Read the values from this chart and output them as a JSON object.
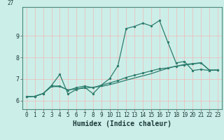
{
  "xlabel": "Humidex (Indice chaleur)",
  "line_color": "#2d7d6e",
  "bg_color": "#cceee8",
  "grid_color": "#f0b8b8",
  "xlim": [
    -0.5,
    23.5
  ],
  "ylim": [
    5.6,
    10.35
  ],
  "yticks": [
    6,
    7,
    8,
    9
  ],
  "xticks": [
    0,
    1,
    2,
    3,
    4,
    5,
    6,
    7,
    8,
    9,
    10,
    11,
    12,
    13,
    14,
    15,
    16,
    17,
    18,
    19,
    20,
    21,
    22,
    23
  ],
  "line1_x": [
    0,
    1,
    2,
    3,
    4,
    5,
    6,
    7,
    8,
    9,
    10,
    11,
    12,
    13,
    14,
    15,
    16,
    17,
    18,
    19,
    20,
    21,
    22,
    23
  ],
  "line1_y": [
    6.18,
    6.2,
    6.33,
    6.7,
    7.22,
    6.3,
    6.52,
    6.62,
    6.32,
    6.72,
    7.02,
    7.62,
    9.35,
    9.45,
    9.6,
    9.47,
    9.72,
    8.72,
    7.75,
    7.82,
    7.4,
    7.45,
    7.4,
    7.42
  ],
  "line2_x": [
    0,
    1,
    2,
    3,
    4,
    5,
    6,
    7,
    8,
    9,
    10,
    11,
    12,
    13,
    14,
    15,
    16,
    17,
    18,
    19,
    20,
    21,
    22,
    23
  ],
  "line2_y": [
    6.18,
    6.2,
    6.33,
    6.68,
    6.68,
    6.48,
    6.6,
    6.68,
    6.6,
    6.72,
    6.82,
    6.93,
    7.08,
    7.18,
    7.28,
    7.38,
    7.48,
    7.52,
    7.6,
    7.65,
    7.7,
    7.75,
    7.42,
    7.42
  ],
  "line3_x": [
    0,
    1,
    2,
    3,
    4,
    5,
    6,
    7,
    8,
    9,
    10,
    11,
    12,
    13,
    14,
    15,
    16,
    17,
    18,
    19,
    20,
    21,
    22,
    23
  ],
  "line3_y": [
    6.18,
    6.2,
    6.33,
    6.65,
    6.65,
    6.5,
    6.54,
    6.58,
    6.62,
    6.66,
    6.74,
    6.84,
    6.95,
    7.05,
    7.15,
    7.25,
    7.38,
    7.5,
    7.6,
    7.68,
    7.72,
    7.76,
    7.42,
    7.42
  ],
  "top_label": "27",
  "marker_size": 2.8,
  "line_width": 0.9,
  "xlabel_fontsize": 7,
  "tick_fontsize": 5.5
}
